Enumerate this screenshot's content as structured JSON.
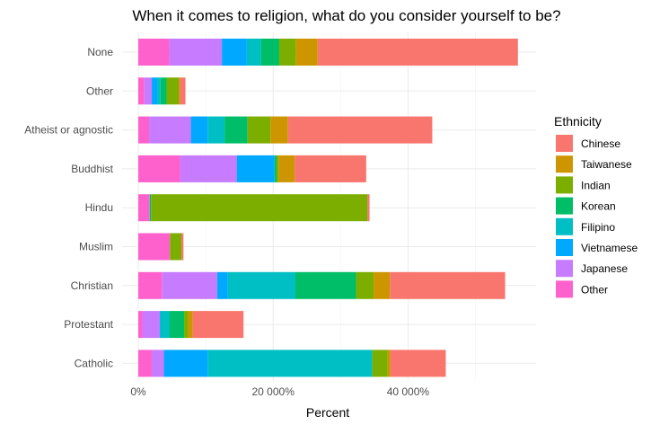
{
  "chart_data": {
    "type": "bar",
    "orientation": "horizontal",
    "stacked": true,
    "title": "When it comes to religion, what do you consider yourself to be?",
    "xlabel": "Percent",
    "ylabel": "",
    "xlim": [
      0,
      59000
    ],
    "x_ticks": [
      0,
      20000,
      40000
    ],
    "x_tick_labels": [
      "0%",
      "20 000%",
      "40 000%"
    ],
    "grid": true,
    "legend_position": "right",
    "legend_title": "Ethnicity",
    "categories": [
      "None",
      "Other",
      "Atheist or agnostic",
      "Buddhist",
      "Hindu",
      "Muslim",
      "Christian",
      "Protestant",
      "Catholic"
    ],
    "series": [
      {
        "name": "Other",
        "color": "#FF61CC",
        "values": [
          4600,
          900,
          1600,
          6200,
          1600,
          4700,
          3500,
          600,
          2000
        ]
      },
      {
        "name": "Japanese",
        "color": "#C77CFF",
        "values": [
          7800,
          1100,
          6200,
          8400,
          100,
          0,
          8200,
          2600,
          1800
        ]
      },
      {
        "name": "Vietnamese",
        "color": "#00A9FF",
        "values": [
          3700,
          800,
          2500,
          5600,
          0,
          0,
          1600,
          0,
          6500
        ]
      },
      {
        "name": "Filipino",
        "color": "#00BFC4",
        "values": [
          2100,
          500,
          2500,
          0,
          0,
          0,
          10000,
          1400,
          24400
        ]
      },
      {
        "name": "Korean",
        "color": "#00BE67",
        "values": [
          2700,
          900,
          3400,
          300,
          200,
          0,
          9000,
          2200,
          0
        ]
      },
      {
        "name": "Indian",
        "color": "#7CAE00",
        "values": [
          2500,
          1800,
          3400,
          300,
          32100,
          1700,
          2600,
          600,
          2300
        ]
      },
      {
        "name": "Taiwanese",
        "color": "#CD9600",
        "values": [
          3200,
          200,
          2600,
          2400,
          0,
          0,
          2400,
          700,
          400
        ]
      },
      {
        "name": "Chinese",
        "color": "#F8766D",
        "values": [
          29700,
          800,
          21400,
          10600,
          300,
          300,
          17100,
          7500,
          8200
        ]
      }
    ]
  }
}
